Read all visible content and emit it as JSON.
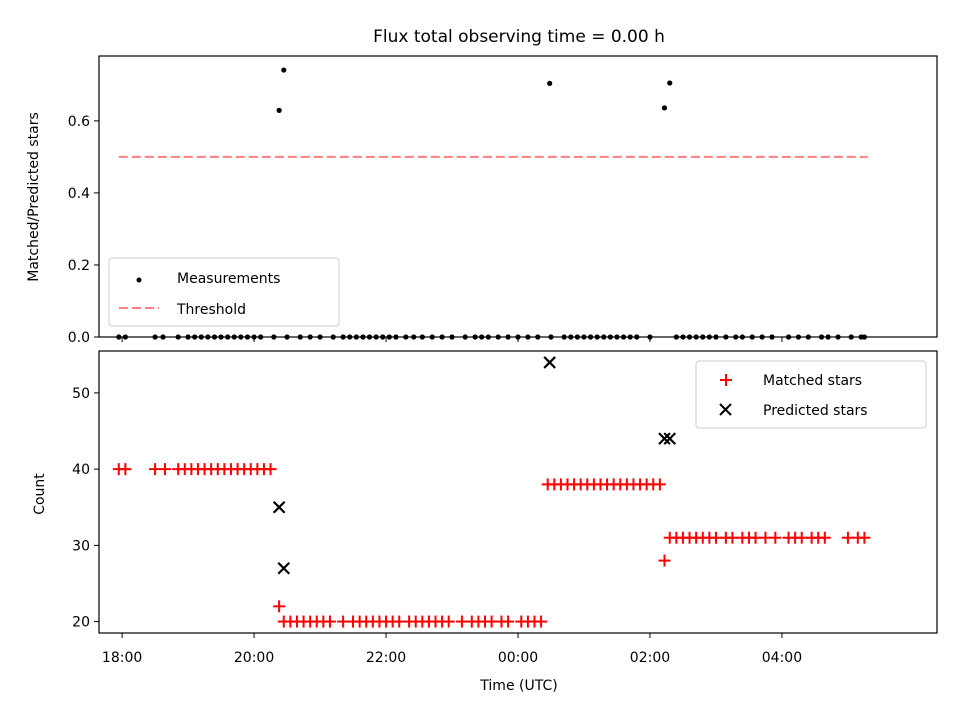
{
  "chart_data": [
    {
      "type": "scatter",
      "title": "Flux total observing time = 0.00 h",
      "xlabel": "",
      "ylabel": "Matched/Predicted stars",
      "xlim": [
        -0.35,
        12.35
      ],
      "ylim": [
        0,
        0.78
      ],
      "yticks": [
        0.0,
        0.2,
        0.4,
        0.6
      ],
      "ytick_labels": [
        "0.0",
        "0.2",
        "0.4",
        "0.6"
      ],
      "xticks": [
        0,
        2,
        4,
        6,
        8,
        10
      ],
      "legend_position": "lower-left",
      "series": [
        {
          "name": "Measurements",
          "color": "#000000",
          "marker": "dot",
          "x": [
            -0.05,
            0.05,
            0.5,
            0.62,
            0.85,
            1.0,
            1.1,
            1.2,
            1.3,
            1.4,
            1.5,
            1.6,
            1.7,
            1.8,
            1.9,
            2.0,
            2.1,
            2.3,
            2.5,
            2.7,
            2.85,
            3.0,
            3.2,
            3.35,
            3.45,
            3.55,
            3.65,
            3.75,
            3.85,
            3.95,
            4.05,
            4.15,
            4.3,
            4.42,
            4.55,
            4.7,
            4.85,
            5.0,
            5.2,
            5.35,
            5.45,
            5.55,
            5.7,
            5.85,
            6.0,
            6.15,
            6.3,
            6.5,
            6.7,
            6.8,
            6.9,
            7.0,
            7.1,
            7.2,
            7.3,
            7.4,
            7.5,
            7.6,
            7.7,
            7.8,
            8.0,
            8.4,
            8.5,
            8.6,
            8.7,
            8.8,
            8.9,
            9.0,
            9.15,
            9.3,
            9.4,
            9.55,
            9.7,
            9.85,
            10.1,
            10.25,
            10.4,
            10.6,
            10.7,
            10.85,
            11.05,
            11.2,
            11.25
          ],
          "y": [
            0,
            0,
            0,
            0,
            0,
            0,
            0,
            0,
            0,
            0,
            0,
            0,
            0,
            0,
            0,
            0,
            0,
            0,
            0,
            0,
            0,
            0,
            0,
            0,
            0,
            0,
            0,
            0,
            0,
            0,
            0,
            0,
            0,
            0,
            0,
            0,
            0,
            0,
            0,
            0,
            0,
            0,
            0,
            0,
            0,
            0,
            0,
            0,
            0,
            0,
            0,
            0,
            0,
            0,
            0,
            0,
            0,
            0,
            0,
            0,
            0,
            0,
            0,
            0,
            0,
            0,
            0,
            0,
            0,
            0,
            0,
            0,
            0,
            0,
            0,
            0,
            0,
            0,
            0,
            0,
            0,
            0,
            0
          ],
          "highlight_x": [
            2.38,
            2.45,
            6.48,
            8.22,
            8.3
          ],
          "highlight_y": [
            0.629,
            0.741,
            0.704,
            0.636,
            0.705
          ]
        },
        {
          "name": "Threshold",
          "color": "#ff7f7f",
          "style": "dashed",
          "x": [
            -0.05,
            11.3
          ],
          "y": [
            0.5,
            0.5
          ]
        }
      ]
    },
    {
      "type": "scatter",
      "title": "",
      "xlabel": "Time (UTC)",
      "ylabel": "Count",
      "xlim": [
        -0.35,
        12.35
      ],
      "ylim": [
        18.5,
        55.5
      ],
      "yticks": [
        20,
        30,
        40,
        50
      ],
      "ytick_labels": [
        "20",
        "30",
        "40",
        "50"
      ],
      "xticks": [
        0,
        2,
        4,
        6,
        8,
        10
      ],
      "xtick_labels": [
        "18:00",
        "20:00",
        "22:00",
        "00:00",
        "02:00",
        "04:00"
      ],
      "legend_position": "top-right",
      "series": [
        {
          "name": "Matched stars",
          "color": "#ff0000",
          "marker": "plus",
          "x": [
            -0.05,
            0.05,
            0.5,
            0.65,
            0.85,
            0.95,
            1.05,
            1.15,
            1.25,
            1.35,
            1.45,
            1.55,
            1.65,
            1.75,
            1.85,
            1.95,
            2.05,
            2.15,
            2.25,
            2.38,
            2.45,
            2.55,
            2.65,
            2.75,
            2.85,
            2.95,
            3.05,
            3.15,
            3.35,
            3.5,
            3.6,
            3.7,
            3.8,
            3.9,
            4.0,
            4.1,
            4.2,
            4.35,
            4.45,
            4.55,
            4.65,
            4.75,
            4.85,
            4.95,
            5.15,
            5.3,
            5.4,
            5.5,
            5.6,
            5.75,
            5.85,
            6.05,
            6.15,
            6.25,
            6.35,
            6.45,
            6.55,
            6.65,
            6.75,
            6.85,
            6.95,
            7.05,
            7.15,
            7.25,
            7.35,
            7.45,
            7.55,
            7.65,
            7.75,
            7.85,
            7.95,
            8.05,
            8.15,
            8.22,
            8.3,
            8.4,
            8.5,
            8.6,
            8.7,
            8.8,
            8.9,
            9.0,
            9.15,
            9.25,
            9.4,
            9.5,
            9.6,
            9.75,
            9.9,
            10.1,
            10.2,
            10.3,
            10.45,
            10.55,
            10.65,
            11.0,
            11.15,
            11.25
          ],
          "y": [
            40,
            40,
            40,
            40,
            40,
            40,
            40,
            40,
            40,
            40,
            40,
            40,
            40,
            40,
            40,
            40,
            40,
            40,
            40,
            22,
            20,
            20,
            20,
            20,
            20,
            20,
            20,
            20,
            20,
            20,
            20,
            20,
            20,
            20,
            20,
            20,
            20,
            20,
            20,
            20,
            20,
            20,
            20,
            20,
            20,
            20,
            20,
            20,
            20,
            20,
            20,
            20,
            20,
            20,
            20,
            38,
            38,
            38,
            38,
            38,
            38,
            38,
            38,
            38,
            38,
            38,
            38,
            38,
            38,
            38,
            38,
            38,
            38,
            28,
            31,
            31,
            31,
            31,
            31,
            31,
            31,
            31,
            31,
            31,
            31,
            31,
            31,
            31,
            31,
            31,
            31,
            31,
            31,
            31,
            31,
            31,
            31,
            31
          ]
        },
        {
          "name": "Predicted stars",
          "color": "#000000",
          "marker": "x",
          "x": [
            2.38,
            2.45,
            6.48,
            8.22,
            8.3
          ],
          "y": [
            35,
            27,
            54,
            44,
            44
          ]
        }
      ]
    }
  ]
}
